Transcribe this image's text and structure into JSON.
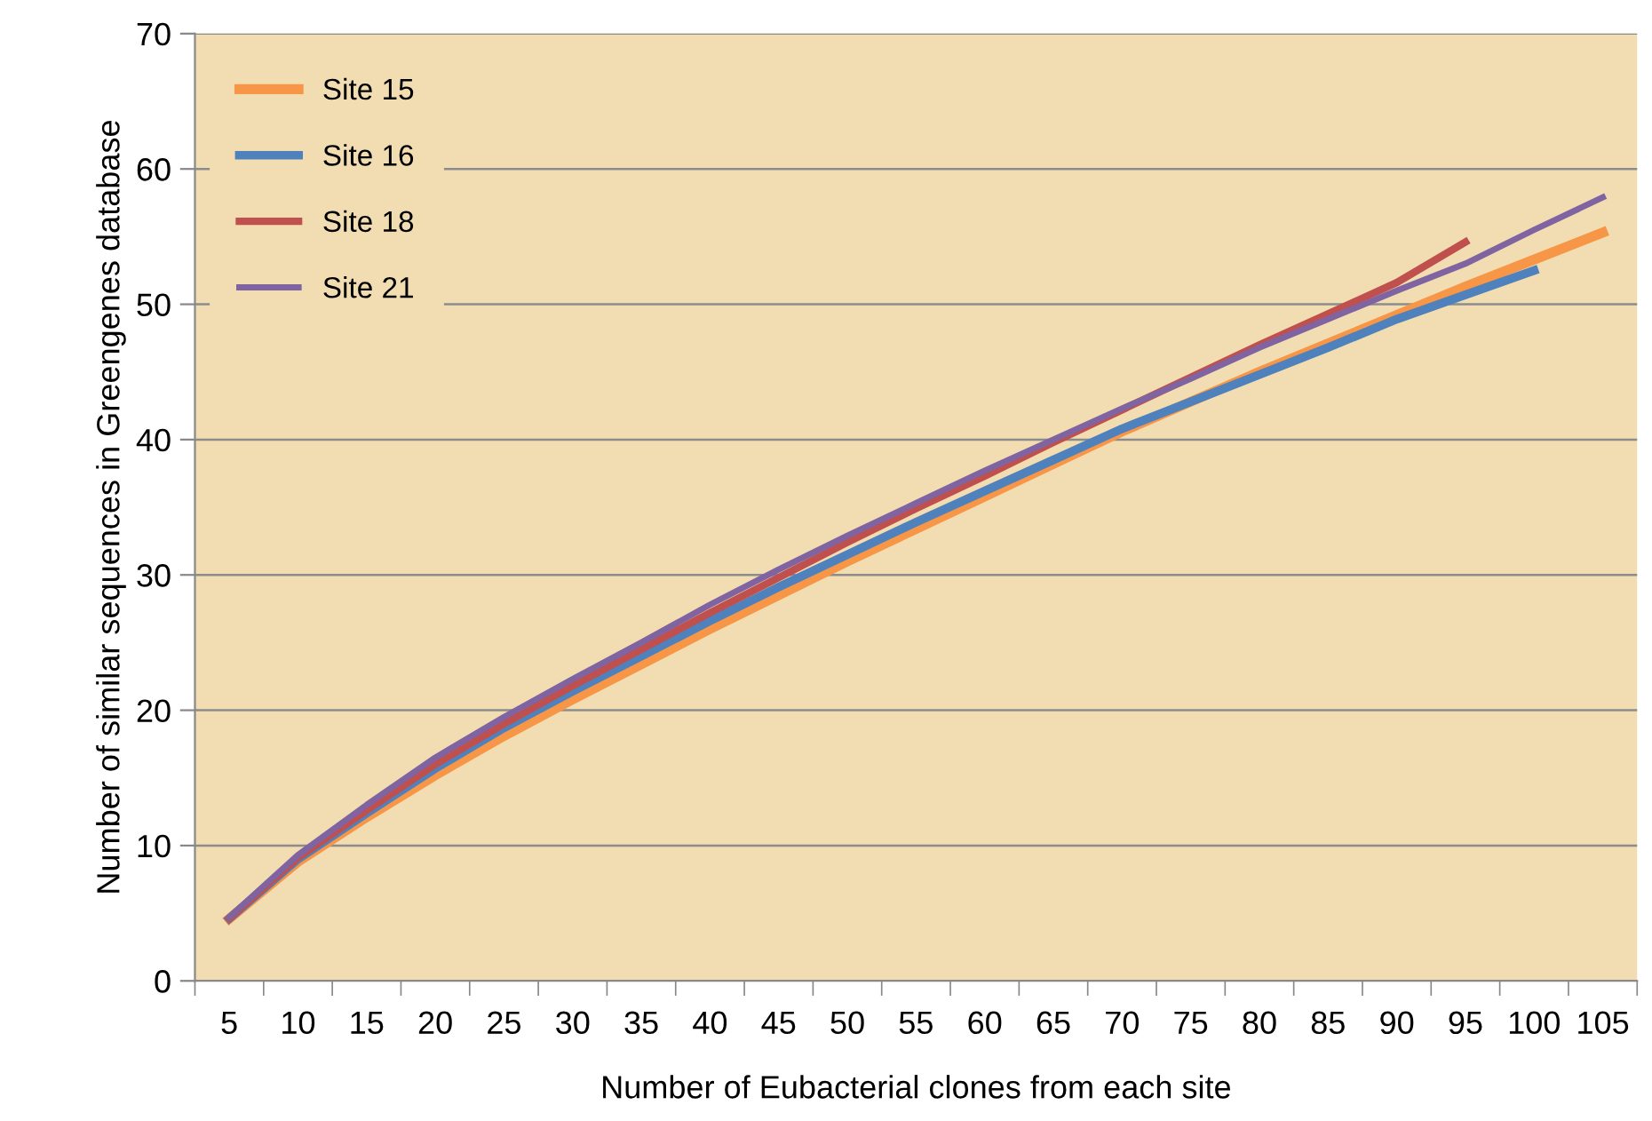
{
  "chart_data": {
    "type": "line",
    "xlabel": "Number of Eubacterial clones from each site",
    "ylabel": "Number of similar sequences in Greengenes database",
    "categories": [
      "5",
      "10",
      "15",
      "20",
      "25",
      "30",
      "35",
      "40",
      "45",
      "50",
      "55",
      "60",
      "65",
      "70",
      "75",
      "80",
      "85",
      "90",
      "95",
      "100",
      "105"
    ],
    "ylim": [
      0,
      70
    ],
    "yticks": [
      0,
      10,
      20,
      30,
      40,
      50,
      60,
      70
    ],
    "grid": "y",
    "legend": "top left",
    "marker": "none",
    "line_style": "solid",
    "series": [
      {
        "name": "Site 15",
        "color": "#f79646",
        "values": [
          4.6,
          8.8,
          12.1,
          15.2,
          18.1,
          20.8,
          23.4,
          26.0,
          28.5,
          31.0,
          33.4,
          35.8,
          38.2,
          40.6,
          42.8,
          45.0,
          47.1,
          49.2,
          51.3,
          53.3,
          55.3
        ]
      },
      {
        "name": "Site 16",
        "color": "#4f81bd",
        "values": [
          4.6,
          9.0,
          12.4,
          15.7,
          18.7,
          21.4,
          24.0,
          26.6,
          29.1,
          31.5,
          33.9,
          36.2,
          38.5,
          40.8,
          42.8,
          44.8,
          46.8,
          48.9,
          50.7,
          52.5,
          null
        ]
      },
      {
        "name": "Site 18",
        "color": "#c0504d",
        "values": [
          4.6,
          9.1,
          12.6,
          16.0,
          19.0,
          21.8,
          24.5,
          27.2,
          29.8,
          32.4,
          34.9,
          37.3,
          39.8,
          42.2,
          44.6,
          47.0,
          49.3,
          51.6,
          54.6,
          null,
          null
        ]
      },
      {
        "name": "Site 21",
        "color": "#8064a2",
        "values": [
          4.7,
          9.3,
          13.0,
          16.5,
          19.5,
          22.3,
          25.0,
          27.8,
          30.4,
          32.9,
          35.3,
          37.7,
          40.0,
          42.3,
          44.5,
          46.8,
          48.9,
          51.0,
          53.0,
          55.5,
          57.9
        ]
      }
    ]
  }
}
